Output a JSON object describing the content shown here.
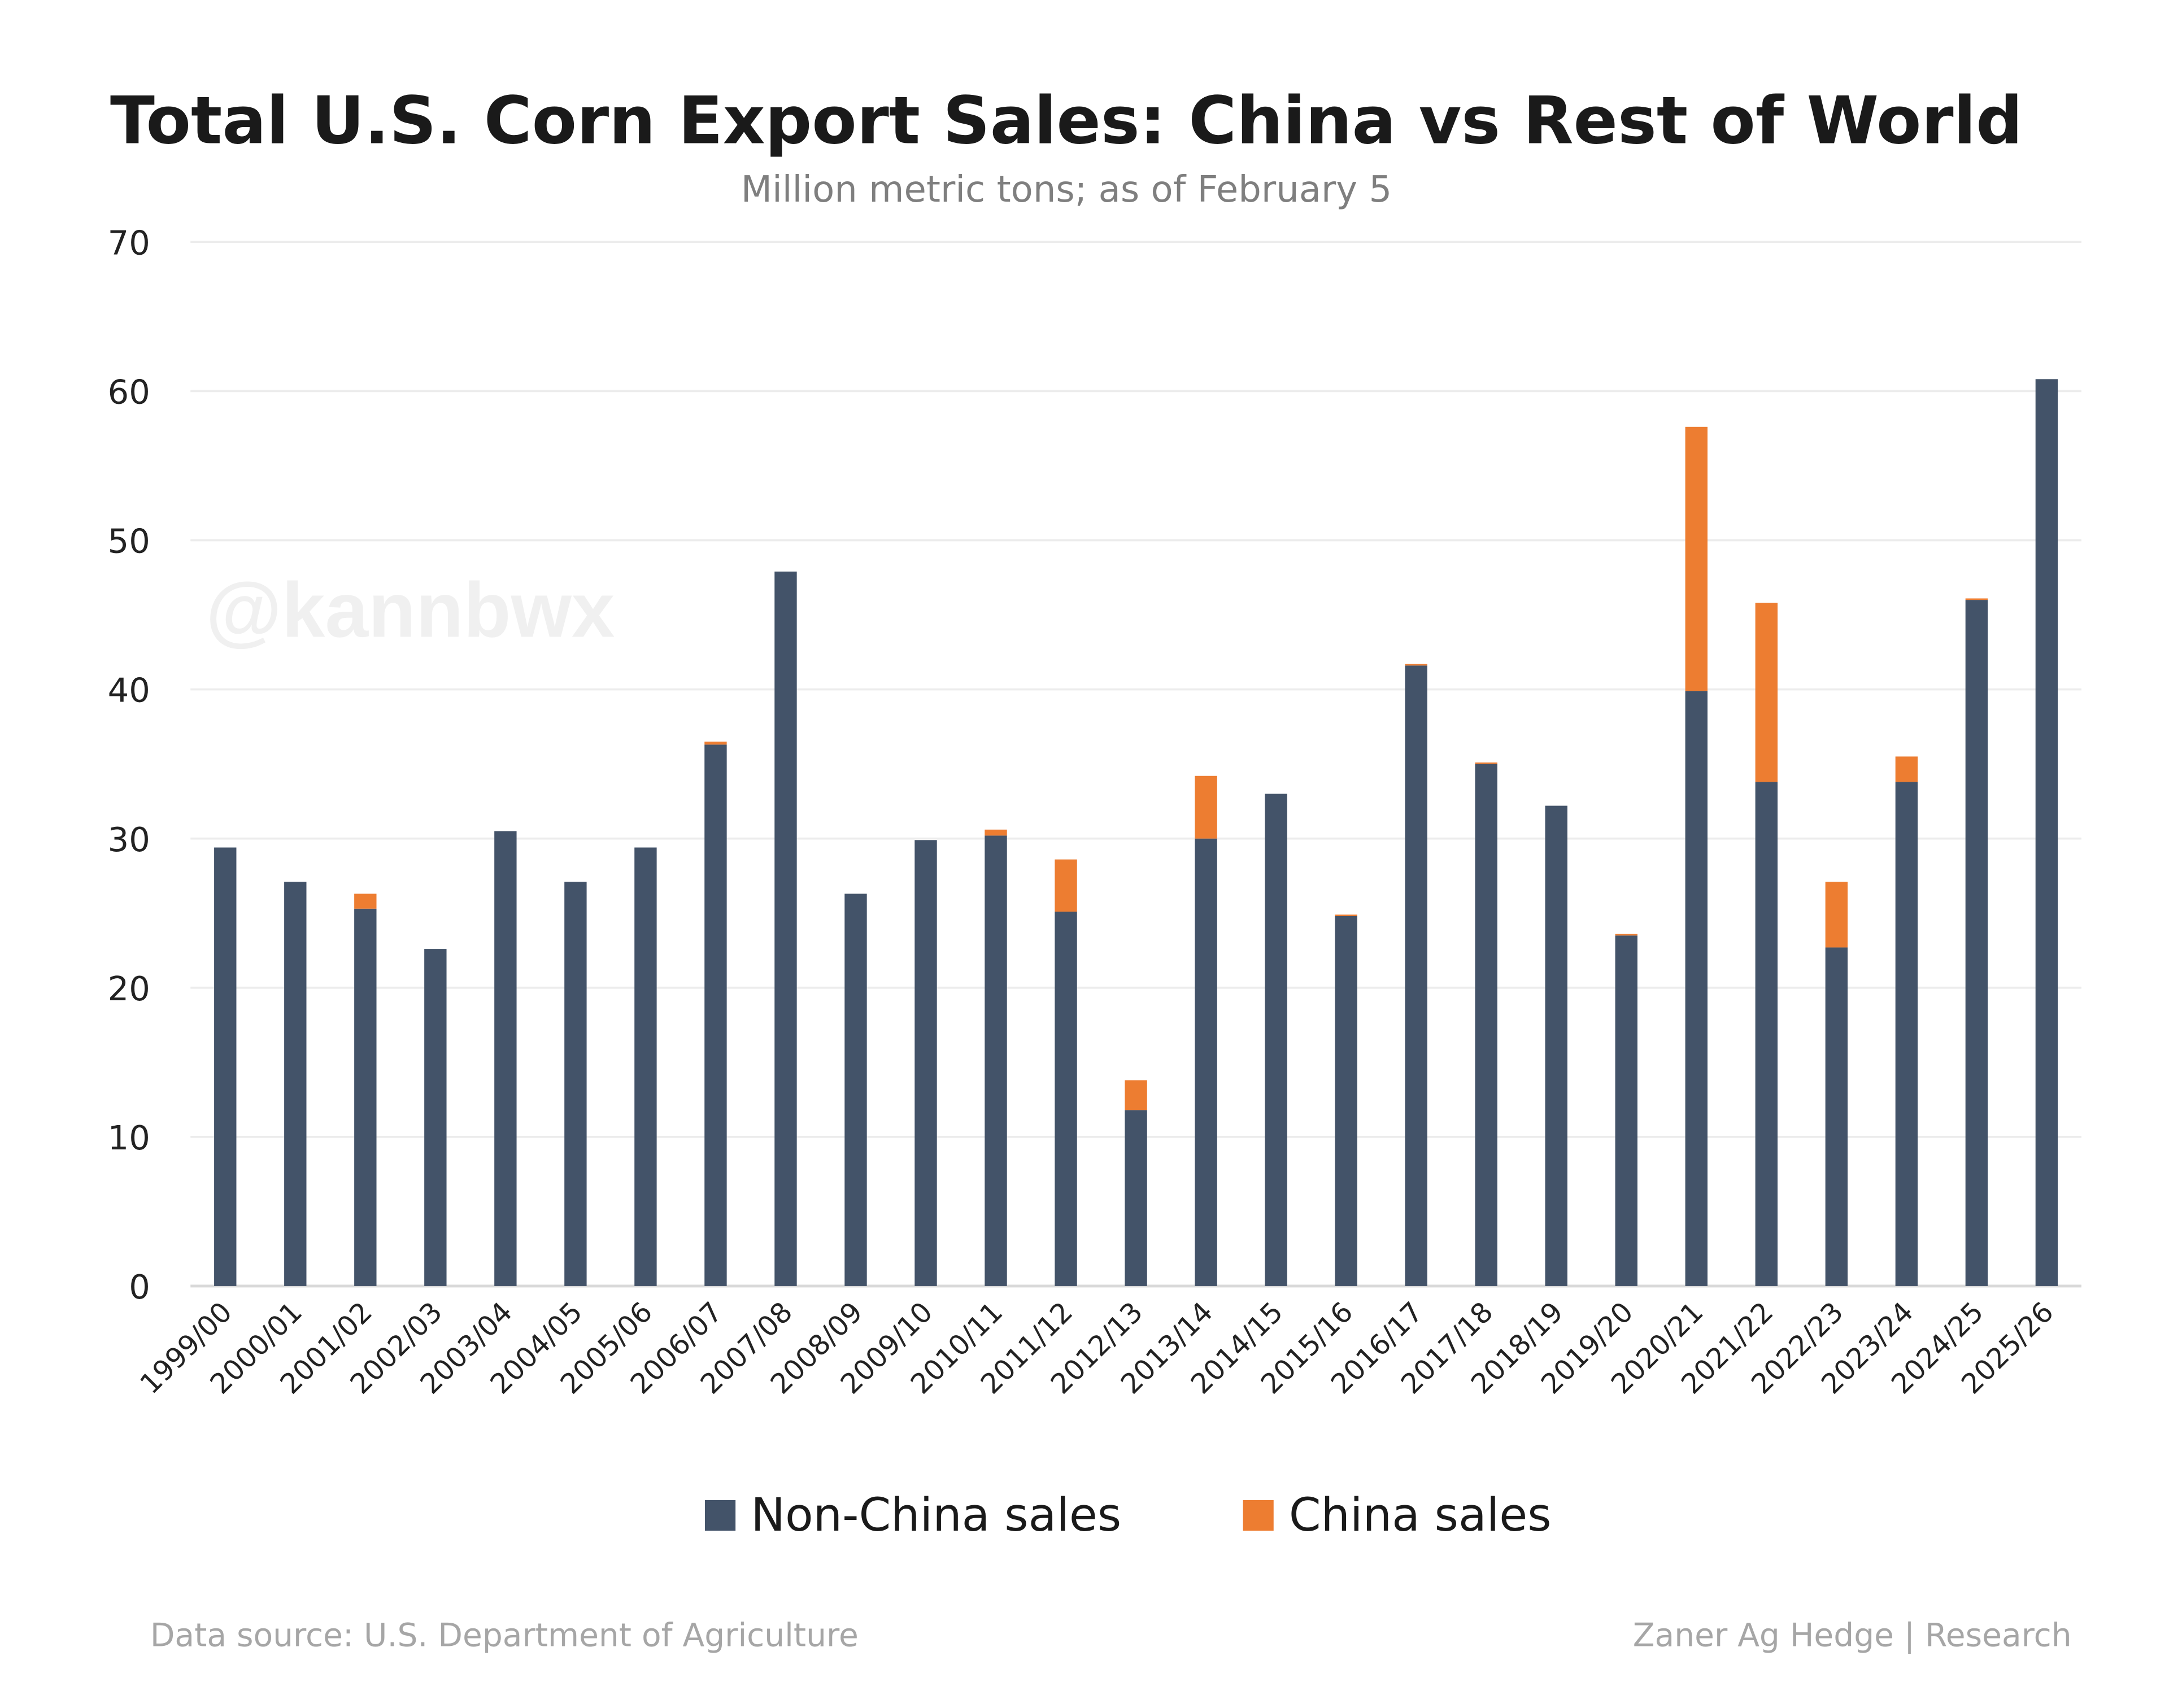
{
  "chart_data": {
    "type": "bar",
    "stacked": true,
    "title": "Total U.S. Corn Export Sales: China vs Rest of World",
    "subtitle": "Million metric tons; as of February 5",
    "xlabel": "",
    "ylabel": "",
    "ylim": [
      0,
      70
    ],
    "yticks": [
      "0",
      "10",
      "20",
      "30",
      "40",
      "50",
      "60",
      "70"
    ],
    "grid": true,
    "legend_placement": "bottom",
    "categories": [
      "1999/00",
      "2000/01",
      "2001/02",
      "2002/03",
      "2003/04",
      "2004/05",
      "2005/06",
      "2006/07",
      "2007/08",
      "2008/09",
      "2009/10",
      "2010/11",
      "2011/12",
      "2012/13",
      "2013/14",
      "2014/15",
      "2015/16",
      "2016/17",
      "2017/18",
      "2018/19",
      "2019/20",
      "2020/21",
      "2021/22",
      "2022/23",
      "2023/24",
      "2024/25",
      "2025/26"
    ],
    "series": [
      {
        "name": "Non-China sales",
        "color": "#435369",
        "values": [
          29.4,
          27.1,
          25.3,
          22.6,
          30.5,
          27.1,
          29.4,
          36.3,
          47.9,
          26.3,
          29.9,
          30.2,
          25.1,
          11.8,
          30.0,
          33.0,
          24.8,
          41.6,
          35.0,
          32.2,
          23.5,
          39.9,
          33.8,
          22.7,
          33.8,
          46.0,
          60.8
        ]
      },
      {
        "name": "China sales",
        "color": "#ED7D31",
        "values": [
          0,
          0,
          1.0,
          0,
          0,
          0,
          0,
          0.2,
          0,
          0,
          0,
          0.4,
          3.5,
          2.0,
          4.2,
          0,
          0.1,
          0.1,
          0.1,
          0,
          0.1,
          17.7,
          12.0,
          4.4,
          1.7,
          0.1,
          0
        ]
      }
    ]
  },
  "watermark": "@kannbwx",
  "footer": {
    "source": "Data source: U.S. Department of Agriculture",
    "credit": "Zaner Ag Hedge | Research"
  }
}
